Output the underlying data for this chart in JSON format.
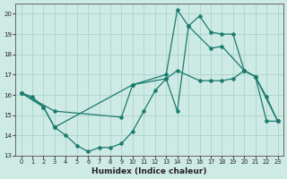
{
  "title": "",
  "xlabel": "Humidex (Indice chaleur)",
  "ylabel": "",
  "background_color": "#ceeae4",
  "line_color": "#1a7a6e",
  "grid_color": "#aad4cc",
  "xlim": [
    -0.5,
    23.5
  ],
  "ylim": [
    13,
    20.5
  ],
  "yticks": [
    13,
    14,
    15,
    16,
    17,
    18,
    19,
    20
  ],
  "xticks": [
    0,
    1,
    2,
    3,
    4,
    5,
    6,
    7,
    8,
    9,
    10,
    11,
    12,
    13,
    14,
    15,
    16,
    17,
    18,
    19,
    20,
    21,
    22,
    23
  ],
  "series1_x": [
    0,
    1,
    2,
    3,
    4,
    5,
    6,
    7,
    8,
    9,
    10,
    11,
    12,
    13,
    14,
    15,
    16,
    17,
    18,
    19,
    20,
    21,
    22,
    23
  ],
  "series1_y": [
    16.1,
    15.9,
    15.4,
    14.4,
    14.0,
    13.5,
    13.2,
    13.4,
    13.4,
    13.6,
    14.2,
    15.2,
    16.2,
    16.8,
    15.2,
    19.4,
    19.9,
    19.1,
    19.0,
    19.0,
    17.2,
    16.9,
    15.9,
    14.7
  ],
  "series2_x": [
    0,
    2,
    3,
    10,
    13,
    14,
    15,
    17,
    18,
    20,
    21,
    23
  ],
  "series2_y": [
    16.1,
    15.4,
    14.4,
    16.5,
    17.0,
    20.2,
    19.4,
    18.3,
    18.4,
    17.2,
    16.9,
    14.7
  ],
  "series3_x": [
    0,
    3,
    9,
    10,
    13,
    14,
    16,
    17,
    18,
    19,
    20,
    21,
    22,
    23
  ],
  "series3_y": [
    16.1,
    15.2,
    14.9,
    16.5,
    16.8,
    17.2,
    16.7,
    16.7,
    16.7,
    16.8,
    17.2,
    16.9,
    14.7,
    14.7
  ]
}
